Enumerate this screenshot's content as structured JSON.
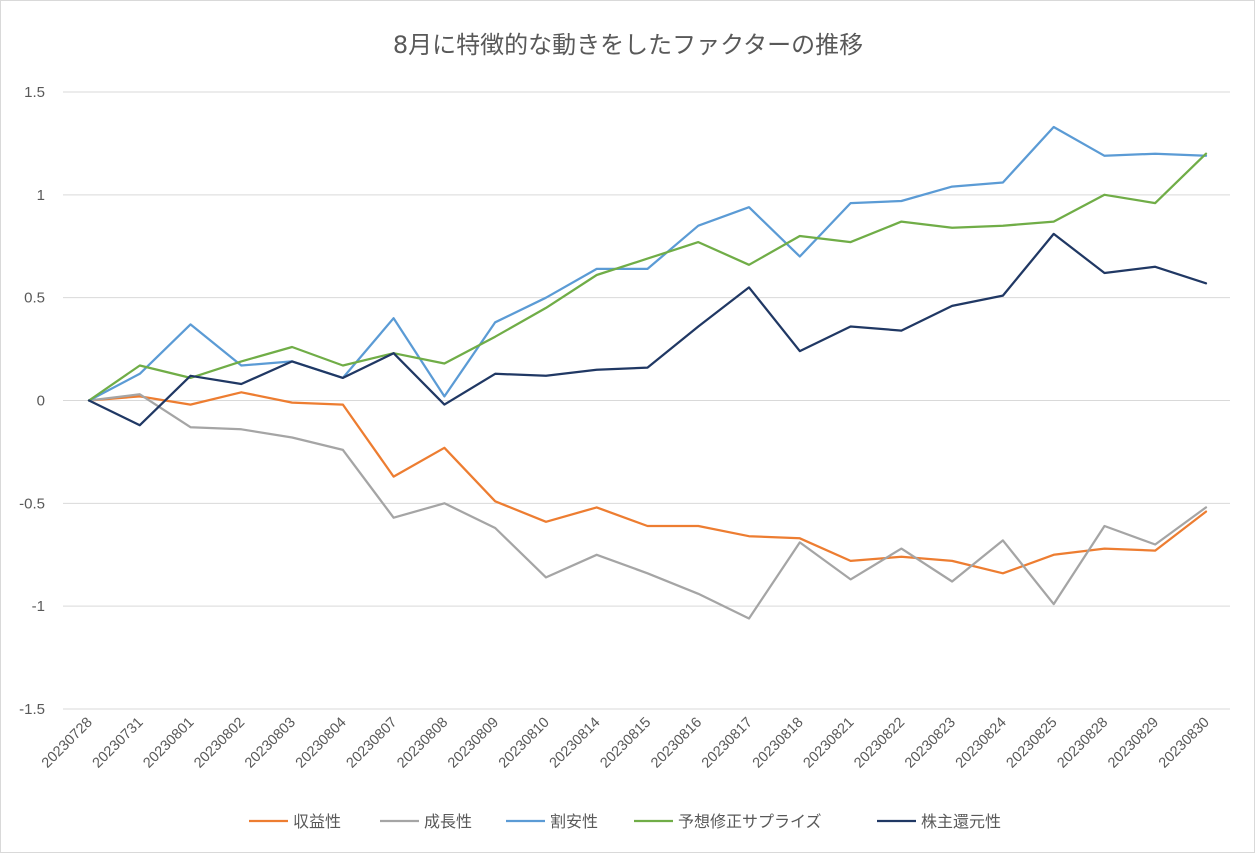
{
  "chart_data": {
    "type": "line",
    "title": "8月に特徴的な動きをしたファクターの推移",
    "xlabel": "",
    "ylabel": "",
    "ylim": [
      -1.5,
      1.5
    ],
    "yticks": [
      1.5,
      1,
      0.5,
      0,
      -0.5,
      -1,
      -1.5
    ],
    "ytick_labels": [
      "1.5",
      "1",
      "0.5",
      "0",
      "-0.5",
      "-1",
      "-1.5"
    ],
    "grid": true,
    "legend_position": "bottom",
    "x": [
      "20230728",
      "20230731",
      "20230801",
      "20230802",
      "20230803",
      "20230804",
      "20230807",
      "20230808",
      "20230809",
      "20230810",
      "20230814",
      "20230815",
      "20230816",
      "20230817",
      "20230818",
      "20230821",
      "20230822",
      "20230823",
      "20230824",
      "20230825",
      "20230828",
      "20230829",
      "20230830"
    ],
    "series": [
      {
        "name": "収益性",
        "color": "#ED7D31",
        "values": [
          0,
          0.02,
          -0.02,
          0.04,
          -0.01,
          -0.02,
          -0.37,
          -0.23,
          -0.49,
          -0.59,
          -0.52,
          -0.61,
          -0.61,
          -0.66,
          -0.67,
          -0.78,
          -0.76,
          -0.78,
          -0.84,
          -0.75,
          -0.72,
          -0.73,
          -0.54
        ]
      },
      {
        "name": "成長性",
        "color": "#A5A5A5",
        "values": [
          0,
          0.03,
          -0.13,
          -0.14,
          -0.18,
          -0.24,
          -0.57,
          -0.5,
          -0.62,
          -0.86,
          -0.75,
          -0.84,
          -0.94,
          -1.06,
          -0.69,
          -0.87,
          -0.72,
          -0.88,
          -0.68,
          -0.99,
          -0.61,
          -0.7,
          -0.52
        ]
      },
      {
        "name": "割安性",
        "color": "#5B9BD5",
        "values": [
          0,
          0.13,
          0.37,
          0.17,
          0.19,
          0.11,
          0.4,
          0.02,
          0.38,
          0.5,
          0.64,
          0.64,
          0.85,
          0.94,
          0.7,
          0.96,
          0.97,
          1.04,
          1.06,
          1.33,
          1.19,
          1.2,
          1.19
        ]
      },
      {
        "name": "予想修正サプライズ",
        "color": "#70AD47",
        "values": [
          0,
          0.17,
          0.11,
          0.19,
          0.26,
          0.17,
          0.23,
          0.18,
          0.31,
          0.45,
          0.61,
          0.69,
          0.77,
          0.66,
          0.8,
          0.77,
          0.87,
          0.84,
          0.85,
          0.87,
          1.0,
          0.96,
          1.2
        ]
      },
      {
        "name": "株主還元性",
        "color": "#203864",
        "values": [
          0,
          -0.12,
          0.12,
          0.08,
          0.19,
          0.11,
          0.23,
          -0.02,
          0.13,
          0.12,
          0.15,
          0.16,
          0.36,
          0.55,
          0.24,
          0.36,
          0.34,
          0.46,
          0.51,
          0.81,
          0.62,
          0.65,
          0.57
        ]
      }
    ]
  }
}
